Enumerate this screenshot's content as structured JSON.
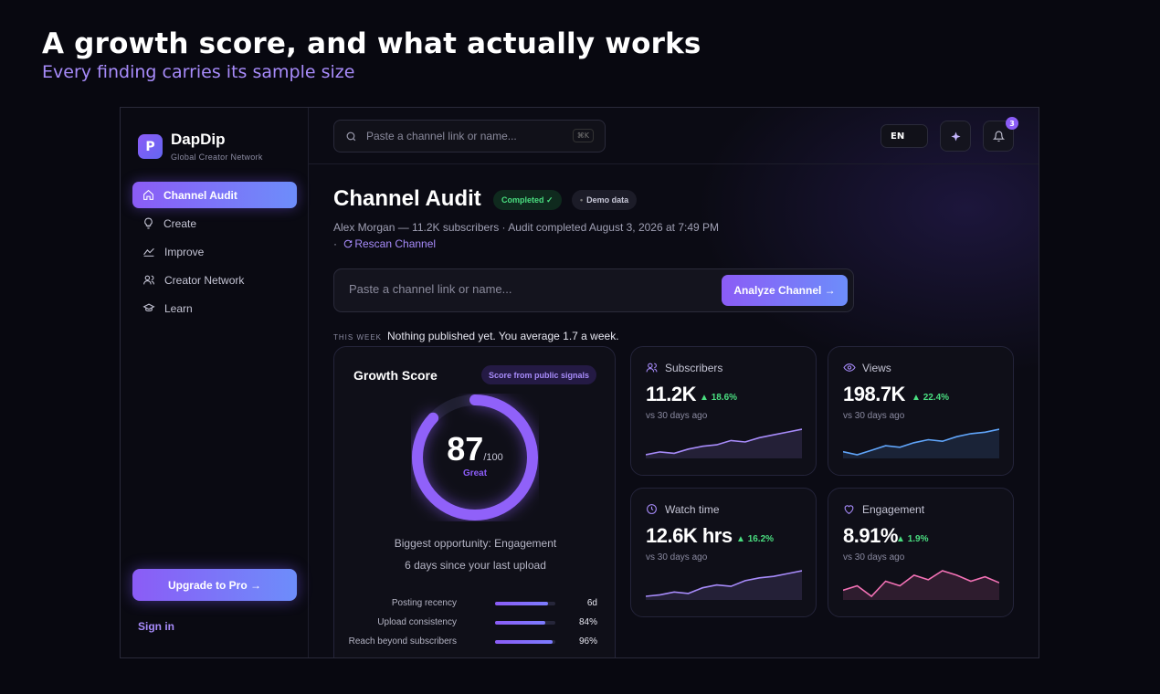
{
  "hero": {
    "title": "A growth score, and what actually works",
    "subtitle": "Every finding carries its sample size"
  },
  "brand": {
    "name": "DapDip",
    "tagline": "Global Creator Network",
    "logo_letter": "P"
  },
  "sidebar": {
    "items": [
      {
        "label": "Channel Audit",
        "icon": "home-icon",
        "active": true
      },
      {
        "label": "Create",
        "icon": "lightbulb-icon",
        "active": false
      },
      {
        "label": "Improve",
        "icon": "trend-icon",
        "active": false
      },
      {
        "label": "Creator Network",
        "icon": "users-icon",
        "active": false
      },
      {
        "label": "Learn",
        "icon": "graduation-cap-icon",
        "active": false
      }
    ],
    "upgrade_label": "Upgrade to Pro →",
    "signin_label": "Sign in"
  },
  "topbar": {
    "search_placeholder": "Paste a channel link or name...",
    "search_shortcut": "⌘K",
    "language": "EN",
    "sparkle_icon": "sparkle-icon",
    "notification_count": "3"
  },
  "page": {
    "title": "Channel Audit",
    "status_badge": "Completed ✓",
    "demo_badge": "Demo data",
    "meta": "Alex Morgan — 11.2K subscribers · Audit completed August 3, 2026 at 7:49 PM",
    "rescan_prefix": "·",
    "rescan_label": "Rescan Channel",
    "analyze_placeholder": "Paste a channel link or name...",
    "analyze_button": "Analyze Channel →",
    "week_label": "THIS WEEK",
    "week_text": "Nothing published yet. You average 1.7 a week."
  },
  "growth_score": {
    "title": "Growth Score",
    "pill": "Score from public signals",
    "score": "87",
    "out_of": "/100",
    "score_fraction": 0.87,
    "rating": "Great",
    "opportunity": "Biggest opportunity: Engagement",
    "since_upload": "6 days since your last upload",
    "metrics": [
      {
        "name": "Posting recency",
        "value": "6d",
        "fill": 0.88
      },
      {
        "name": "Upload consistency",
        "value": "84%",
        "fill": 0.84
      },
      {
        "name": "Reach beyond subscribers",
        "value": "96%",
        "fill": 0.96
      }
    ]
  },
  "stats": [
    {
      "label": "Subscribers",
      "icon": "users-icon",
      "value": "11.2K",
      "delta": "18.6%",
      "vs": "vs 30 days ago",
      "color": "#a78bfa",
      "series": [
        3,
        5,
        4,
        7,
        9,
        10,
        13,
        12,
        15,
        17,
        19,
        21
      ]
    },
    {
      "label": "Views",
      "icon": "eye-icon",
      "value": "198.7K",
      "delta": "22.4%",
      "vs": "vs 30 days ago",
      "color": "#60a5fa",
      "series": [
        5,
        3,
        6,
        9,
        8,
        11,
        13,
        12,
        15,
        17,
        18,
        20
      ]
    },
    {
      "label": "Watch time",
      "icon": "clock-icon",
      "value": "12.6K hrs",
      "delta": "16.2%",
      "vs": "vs 30 days ago",
      "color": "#a78bfa",
      "series": [
        3,
        4,
        6,
        5,
        9,
        11,
        10,
        14,
        16,
        17,
        19,
        21
      ]
    },
    {
      "label": "Engagement",
      "icon": "heart-icon",
      "value": "8.91%",
      "delta": "1.9%",
      "vs": "vs 30 days ago",
      "color": "#f472b6",
      "series": [
        9,
        12,
        5,
        15,
        12,
        19,
        16,
        22,
        19,
        15,
        18,
        14
      ]
    }
  ]
}
